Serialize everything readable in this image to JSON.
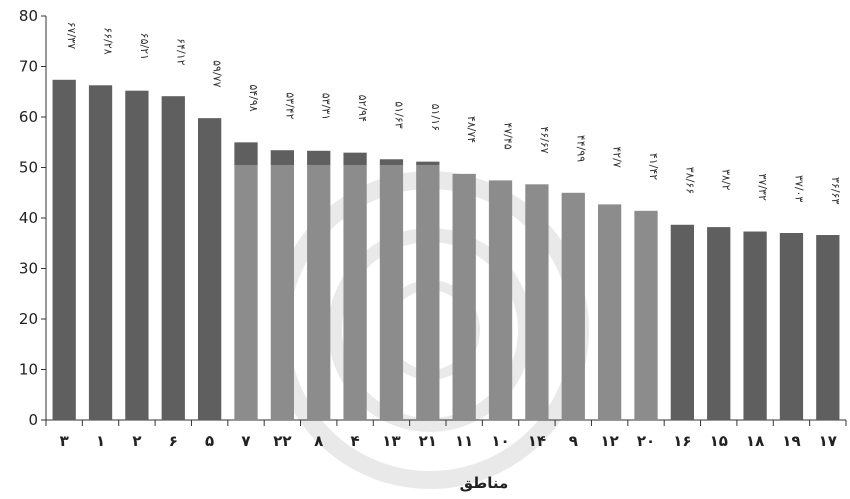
{
  "chart_data": {
    "type": "bar",
    "xlabel": "مناطق",
    "ylabel": "",
    "ylim": [
      0,
      80
    ],
    "yticks": [
      0,
      10,
      20,
      30,
      40,
      50,
      60,
      70,
      80
    ],
    "grid": false,
    "threshold": 50.5,
    "colors": {
      "dark": "#5f5f5f",
      "light": "#8c8c8c"
    },
    "categories": [
      "۳",
      "۱",
      "۲",
      "۶",
      "۵",
      "۷",
      "۲۲",
      "۸",
      "۴",
      "۱۳",
      "۲۱",
      "۱۱",
      "۱۰",
      "۱۴",
      "۹",
      "۱۲",
      "۲۰",
      "۱۶",
      "۱۵",
      "۱۸",
      "۱۹",
      "۱۷"
    ],
    "values": [
      67.37,
      66.28,
      65.21,
      64.12,
      59.77,
      54.98,
      53.42,
      53.31,
      52.94,
      51.63,
      51.16,
      48.74,
      47.45,
      46.67,
      44.99,
      42.7,
      41.42,
      38.66,
      38.2,
      37.32,
      37.03,
      36.63
    ],
    "data_labels": [
      "۶۷/۳۷",
      "۶۶/۲۸",
      "۶۵/۲۱",
      "۶۴/۱۲",
      "۵۹/۷۷",
      "۵۴/۹۸",
      "۵۳/۴۲",
      "۵۳/۳۱",
      "۵۲/۹۴",
      "۵۱/۶۳",
      "۵۱/۱۶",
      "۴۸/۷۴",
      "۴۷/۴۵",
      "۴۶/۶۷",
      "۴۴/۹۹",
      "۴۲/۷",
      "۴۱/۴۲",
      "۳۸/۶۶",
      "۳۸/۲",
      "۳۷/۳۲",
      "۳۷/۰۳",
      "۳۶/۶۳"
    ],
    "color_groups": [
      "dark",
      "dark",
      "dark",
      "dark",
      "dark",
      "light-with-dark-top",
      "light-with-dark-top",
      "light-with-dark-top",
      "light-with-dark-top",
      "light-with-dark-top",
      "light-with-dark-top",
      "light",
      "light",
      "light",
      "light",
      "light",
      "light",
      "dark",
      "dark",
      "dark",
      "dark",
      "dark"
    ]
  }
}
